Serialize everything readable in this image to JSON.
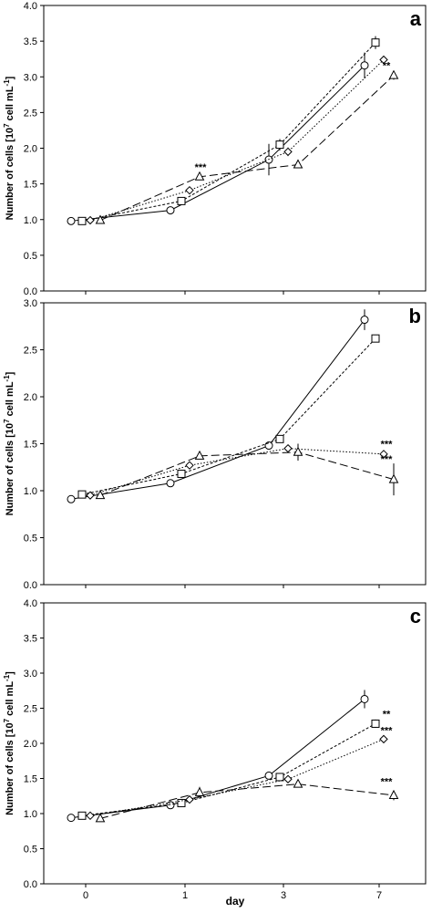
{
  "figure": {
    "xlabel": "day",
    "ylabel_main": "Number of cells [10",
    "ylabel_sup": "7",
    "ylabel_mid": " cell mL",
    "ylabel_sup2": "-1",
    "ylabel_end": "]"
  },
  "chart_data": [
    {
      "type": "line",
      "panel": "a",
      "categories": [
        "0",
        "1",
        "3",
        "7"
      ],
      "ylim": [
        0,
        4.0
      ],
      "yticks": [
        "0.0",
        "0.5",
        "1.0",
        "1.5",
        "2.0",
        "2.5",
        "3.0",
        "3.5",
        "4.0"
      ],
      "series": [
        {
          "marker": "circle",
          "line": "solid",
          "values": [
            0.98,
            1.13,
            1.84,
            3.16
          ],
          "err": [
            0,
            0.03,
            0.22,
            0.18
          ]
        },
        {
          "marker": "square",
          "line": "short-dash",
          "values": [
            0.98,
            1.26,
            2.05,
            3.48
          ],
          "err": [
            0,
            0.03,
            0.08,
            0.09
          ]
        },
        {
          "marker": "diamond",
          "line": "dotted",
          "values": [
            0.99,
            1.41,
            1.95,
            3.24
          ],
          "err": [
            0,
            0.03,
            0.06,
            0.04
          ]
        },
        {
          "marker": "triangle",
          "line": "long-dash",
          "values": [
            0.99,
            1.6,
            1.77,
            3.02
          ],
          "err": [
            0,
            0.03,
            0.03,
            0.06
          ]
        }
      ],
      "annotations": [
        {
          "text": "***",
          "category": "1",
          "y": 1.74
        },
        {
          "text": "**",
          "category": "7",
          "y": 3.16
        }
      ],
      "grid": false
    },
    {
      "type": "line",
      "panel": "b",
      "categories": [
        "0",
        "1",
        "3",
        "7"
      ],
      "ylim": [
        0,
        3.0
      ],
      "yticks": [
        "0.0",
        "0.5",
        "1.0",
        "1.5",
        "2.0",
        "2.5",
        "3.0"
      ],
      "series": [
        {
          "marker": "circle",
          "line": "solid",
          "values": [
            0.91,
            1.08,
            1.48,
            2.82
          ],
          "err": [
            0,
            0.02,
            0.03,
            0.11
          ]
        },
        {
          "marker": "square",
          "line": "short-dash",
          "values": [
            0.96,
            1.18,
            1.55,
            2.62
          ],
          "err": [
            0,
            0.02,
            0.03,
            0.03
          ]
        },
        {
          "marker": "diamond",
          "line": "dotted",
          "values": [
            0.95,
            1.27,
            1.45,
            1.39
          ],
          "err": [
            0,
            0.02,
            0.03,
            0.03
          ]
        },
        {
          "marker": "triangle",
          "line": "long-dash",
          "values": [
            0.95,
            1.37,
            1.41,
            1.12
          ],
          "err": [
            0,
            0.02,
            0.09,
            0.17
          ]
        }
      ],
      "annotations": [
        {
          "text": "***",
          "category": "7",
          "y": 1.5
        },
        {
          "text": "***",
          "category": "7",
          "y": 1.34
        }
      ],
      "grid": false
    },
    {
      "type": "line",
      "panel": "c",
      "categories": [
        "0",
        "1",
        "3",
        "7"
      ],
      "ylim": [
        0,
        4.0
      ],
      "yticks": [
        "0.0",
        "0.5",
        "1.0",
        "1.5",
        "2.0",
        "2.5",
        "3.0",
        "3.5",
        "4.0"
      ],
      "series": [
        {
          "marker": "circle",
          "line": "solid",
          "values": [
            0.94,
            1.12,
            1.54,
            2.63
          ],
          "err": [
            0,
            0.03,
            0.03,
            0.13
          ]
        },
        {
          "marker": "square",
          "line": "short-dash",
          "values": [
            0.97,
            1.15,
            1.52,
            2.28
          ],
          "err": [
            0,
            0.02,
            0.03,
            0.06
          ]
        },
        {
          "marker": "diamond",
          "line": "dotted",
          "values": [
            0.97,
            1.2,
            1.49,
            2.06
          ],
          "err": [
            0,
            0.02,
            0.03,
            0.03
          ]
        },
        {
          "marker": "triangle",
          "line": "long-dash",
          "values": [
            0.93,
            1.3,
            1.42,
            1.26
          ],
          "err": [
            0,
            0.08,
            0.03,
            0.07
          ]
        }
      ],
      "annotations": [
        {
          "text": "**",
          "category": "7",
          "y": 2.42
        },
        {
          "text": "***",
          "category": "7",
          "y": 2.19
        },
        {
          "text": "***",
          "category": "7",
          "y": 1.46
        }
      ],
      "grid": false
    }
  ]
}
